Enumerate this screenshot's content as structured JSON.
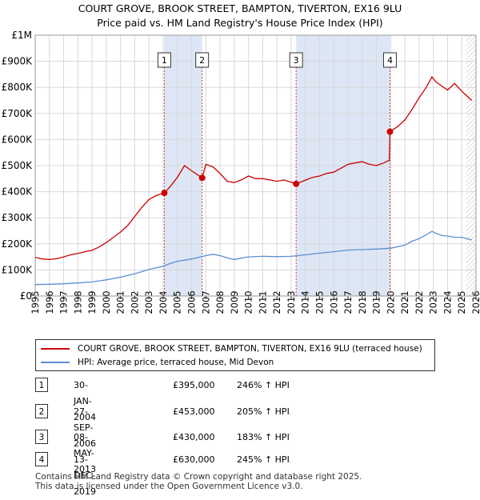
{
  "chart_data": {
    "type": "line",
    "title": "COURT GROVE, BROOK STREET, BAMPTON, TIVERTON, EX16 9LU",
    "subtitle": "Price paid vs. HM Land Registry's House Price Index (HPI)",
    "xlim": [
      1995.0,
      2026.0
    ],
    "ylim": [
      0,
      1000000
    ],
    "y_ticks": [
      {
        "value": 0,
        "label": "£0"
      },
      {
        "value": 100000,
        "label": "£100K"
      },
      {
        "value": 200000,
        "label": "£200K"
      },
      {
        "value": 300000,
        "label": "£300K"
      },
      {
        "value": 400000,
        "label": "£400K"
      },
      {
        "value": 500000,
        "label": "£500K"
      },
      {
        "value": 600000,
        "label": "£600K"
      },
      {
        "value": 700000,
        "label": "£700K"
      },
      {
        "value": 800000,
        "label": "£800K"
      },
      {
        "value": 900000,
        "label": "£900K"
      },
      {
        "value": 1000000,
        "label": "£1M"
      }
    ],
    "x_ticks": [
      "1995",
      "1996",
      "1997",
      "1998",
      "1999",
      "2000",
      "2001",
      "2002",
      "2003",
      "2004",
      "2005",
      "2006",
      "2007",
      "2008",
      "2009",
      "2010",
      "2011",
      "2012",
      "2013",
      "2014",
      "2015",
      "2016",
      "2017",
      "2018",
      "2019",
      "2020",
      "2021",
      "2022",
      "2023",
      "2024",
      "2025",
      "2026"
    ],
    "grid": true,
    "shaded_periods": [
      [
        2004.08,
        2006.74
      ],
      [
        2013.35,
        2019.95
      ]
    ],
    "hatched_from": 2025.3,
    "series": [
      {
        "name": "COURT GROVE, BROOK STREET, BAMPTON, TIVERTON, EX16 9LU (terraced house)",
        "color": "#cc0000",
        "x": [
          1995.0,
          1995.5,
          1996.0,
          1996.5,
          1997.0,
          1997.5,
          1998.0,
          1998.5,
          1999.0,
          1999.5,
          2000.0,
          2000.5,
          2001.0,
          2001.5,
          2002.0,
          2002.5,
          2003.0,
          2003.5,
          2004.08,
          2004.5,
          2005.0,
          2005.5,
          2006.0,
          2006.74,
          2007.0,
          2007.5,
          2008.0,
          2008.5,
          2009.0,
          2009.5,
          2010.0,
          2010.5,
          2011.0,
          2011.5,
          2012.0,
          2012.5,
          2013.35,
          2013.8,
          2014.5,
          2015.0,
          2015.5,
          2016.0,
          2016.5,
          2017.0,
          2017.5,
          2018.0,
          2018.5,
          2019.0,
          2019.5,
          2019.9,
          2019.95,
          2020.5,
          2021.0,
          2021.5,
          2022.0,
          2022.5,
          2022.9,
          2023.2,
          2023.6,
          2024.0,
          2024.5,
          2025.0,
          2025.3,
          2025.7
        ],
        "y": [
          148000,
          142000,
          140000,
          143000,
          150000,
          158000,
          163000,
          170000,
          175000,
          188000,
          205000,
          225000,
          245000,
          270000,
          305000,
          340000,
          370000,
          385000,
          395000,
          420000,
          455000,
          500000,
          480000,
          453000,
          505000,
          495000,
          470000,
          440000,
          435000,
          445000,
          460000,
          450000,
          450000,
          445000,
          440000,
          445000,
          430000,
          440000,
          455000,
          460000,
          470000,
          475000,
          490000,
          505000,
          510000,
          515000,
          505000,
          500000,
          510000,
          520000,
          630000,
          650000,
          675000,
          715000,
          760000,
          800000,
          840000,
          820000,
          805000,
          790000,
          815000,
          785000,
          770000,
          750000
        ]
      },
      {
        "name": "HPI: Average price, terraced house, Mid Devon",
        "color": "#5b8fd0",
        "x": [
          1995.0,
          1996.0,
          1997.0,
          1998.0,
          1999.0,
          2000.0,
          2001.0,
          2002.0,
          2003.0,
          2004.0,
          2004.5,
          2005.0,
          2006.0,
          2007.0,
          2007.5,
          2008.0,
          2008.5,
          2009.0,
          2009.5,
          2010.0,
          2011.0,
          2012.0,
          2013.0,
          2014.0,
          2015.0,
          2016.0,
          2017.0,
          2018.0,
          2019.0,
          2020.0,
          2021.0,
          2021.5,
          2022.0,
          2022.5,
          2022.9,
          2023.2,
          2023.6,
          2024.0,
          2024.5,
          2025.0,
          2025.7
        ],
        "y": [
          44000,
          45000,
          47000,
          50000,
          54000,
          62000,
          72000,
          85000,
          102000,
          114000,
          125000,
          133000,
          142000,
          155000,
          160000,
          155000,
          146000,
          140000,
          145000,
          150000,
          152000,
          151000,
          152000,
          158000,
          164000,
          170000,
          176000,
          178000,
          180000,
          183000,
          195000,
          210000,
          220000,
          235000,
          248000,
          240000,
          232000,
          230000,
          225000,
          225000,
          215000
        ]
      }
    ],
    "sales": [
      {
        "num": "1",
        "x": 2004.08,
        "value": 395000,
        "date": "30-JAN-2004",
        "price": "£395,000",
        "hpi": "246% ↑ HPI"
      },
      {
        "num": "2",
        "x": 2006.74,
        "value": 453000,
        "date": "27-SEP-2006",
        "price": "£453,000",
        "hpi": "205% ↑ HPI"
      },
      {
        "num": "3",
        "x": 2013.35,
        "value": 430000,
        "date": "08-MAY-2013",
        "price": "£430,000",
        "hpi": "183% ↑ HPI"
      },
      {
        "num": "4",
        "x": 2019.95,
        "value": 630000,
        "date": "13-DEC-2019",
        "price": "£630,000",
        "hpi": "245% ↑ HPI"
      }
    ]
  },
  "legend": {
    "property_label": "COURT GROVE, BROOK STREET, BAMPTON, TIVERTON, EX16 9LU (terraced house)",
    "hpi_label": "HPI: Average price, terraced house, Mid Devon"
  },
  "colors": {
    "property": "#cc0000",
    "hpi": "#5b8fd0",
    "shade": "#dde6f5",
    "grid": "#d8d8d8"
  },
  "footer": {
    "line1": "Contains HM Land Registry data © Crown copyright and database right 2025.",
    "line2": "This data is licensed under the Open Government Licence v3.0."
  }
}
